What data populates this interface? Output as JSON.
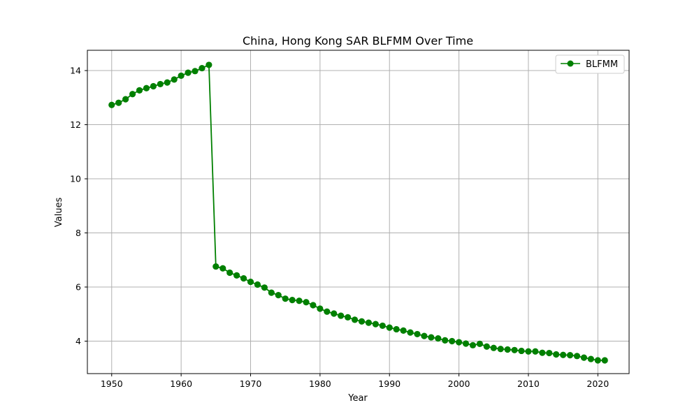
{
  "chart_data": {
    "type": "line",
    "title": "China, Hong Kong SAR BLFMM Over Time",
    "xlabel": "Year",
    "ylabel": "Values",
    "xlim": [
      1946.5,
      2024.5
    ],
    "ylim": [
      2.8,
      14.75
    ],
    "x_ticks": [
      1950,
      1960,
      1970,
      1980,
      1990,
      2000,
      2010,
      2020
    ],
    "y_ticks": [
      4,
      6,
      8,
      10,
      12,
      14
    ],
    "grid": true,
    "legend_position": "top-right",
    "series": [
      {
        "name": "BLFMM",
        "color": "#008000",
        "marker": "circle",
        "x": [
          1950,
          1951,
          1952,
          1953,
          1954,
          1955,
          1956,
          1957,
          1958,
          1959,
          1960,
          1961,
          1962,
          1963,
          1964,
          1965,
          1966,
          1967,
          1968,
          1969,
          1970,
          1971,
          1972,
          1973,
          1974,
          1975,
          1976,
          1977,
          1978,
          1979,
          1980,
          1981,
          1982,
          1983,
          1984,
          1985,
          1986,
          1987,
          1988,
          1989,
          1990,
          1991,
          1992,
          1993,
          1994,
          1995,
          1996,
          1997,
          1998,
          1999,
          2000,
          2001,
          2002,
          2003,
          2004,
          2005,
          2006,
          2007,
          2008,
          2009,
          2010,
          2011,
          2012,
          2013,
          2014,
          2015,
          2016,
          2017,
          2018,
          2019,
          2020,
          2021
        ],
        "values": [
          12.73,
          12.81,
          12.94,
          13.13,
          13.27,
          13.35,
          13.42,
          13.5,
          13.56,
          13.67,
          13.81,
          13.92,
          13.98,
          14.09,
          14.21,
          6.76,
          6.69,
          6.53,
          6.43,
          6.32,
          6.19,
          6.09,
          5.98,
          5.79,
          5.7,
          5.57,
          5.52,
          5.49,
          5.44,
          5.33,
          5.2,
          5.09,
          5.02,
          4.94,
          4.88,
          4.79,
          4.73,
          4.68,
          4.63,
          4.57,
          4.5,
          4.44,
          4.39,
          4.32,
          4.26,
          4.19,
          4.14,
          4.1,
          4.03,
          4.0,
          3.96,
          3.91,
          3.85,
          3.9,
          3.8,
          3.75,
          3.71,
          3.69,
          3.67,
          3.64,
          3.62,
          3.62,
          3.57,
          3.56,
          3.51,
          3.49,
          3.48,
          3.45,
          3.39,
          3.34,
          3.29,
          3.29
        ]
      }
    ]
  }
}
